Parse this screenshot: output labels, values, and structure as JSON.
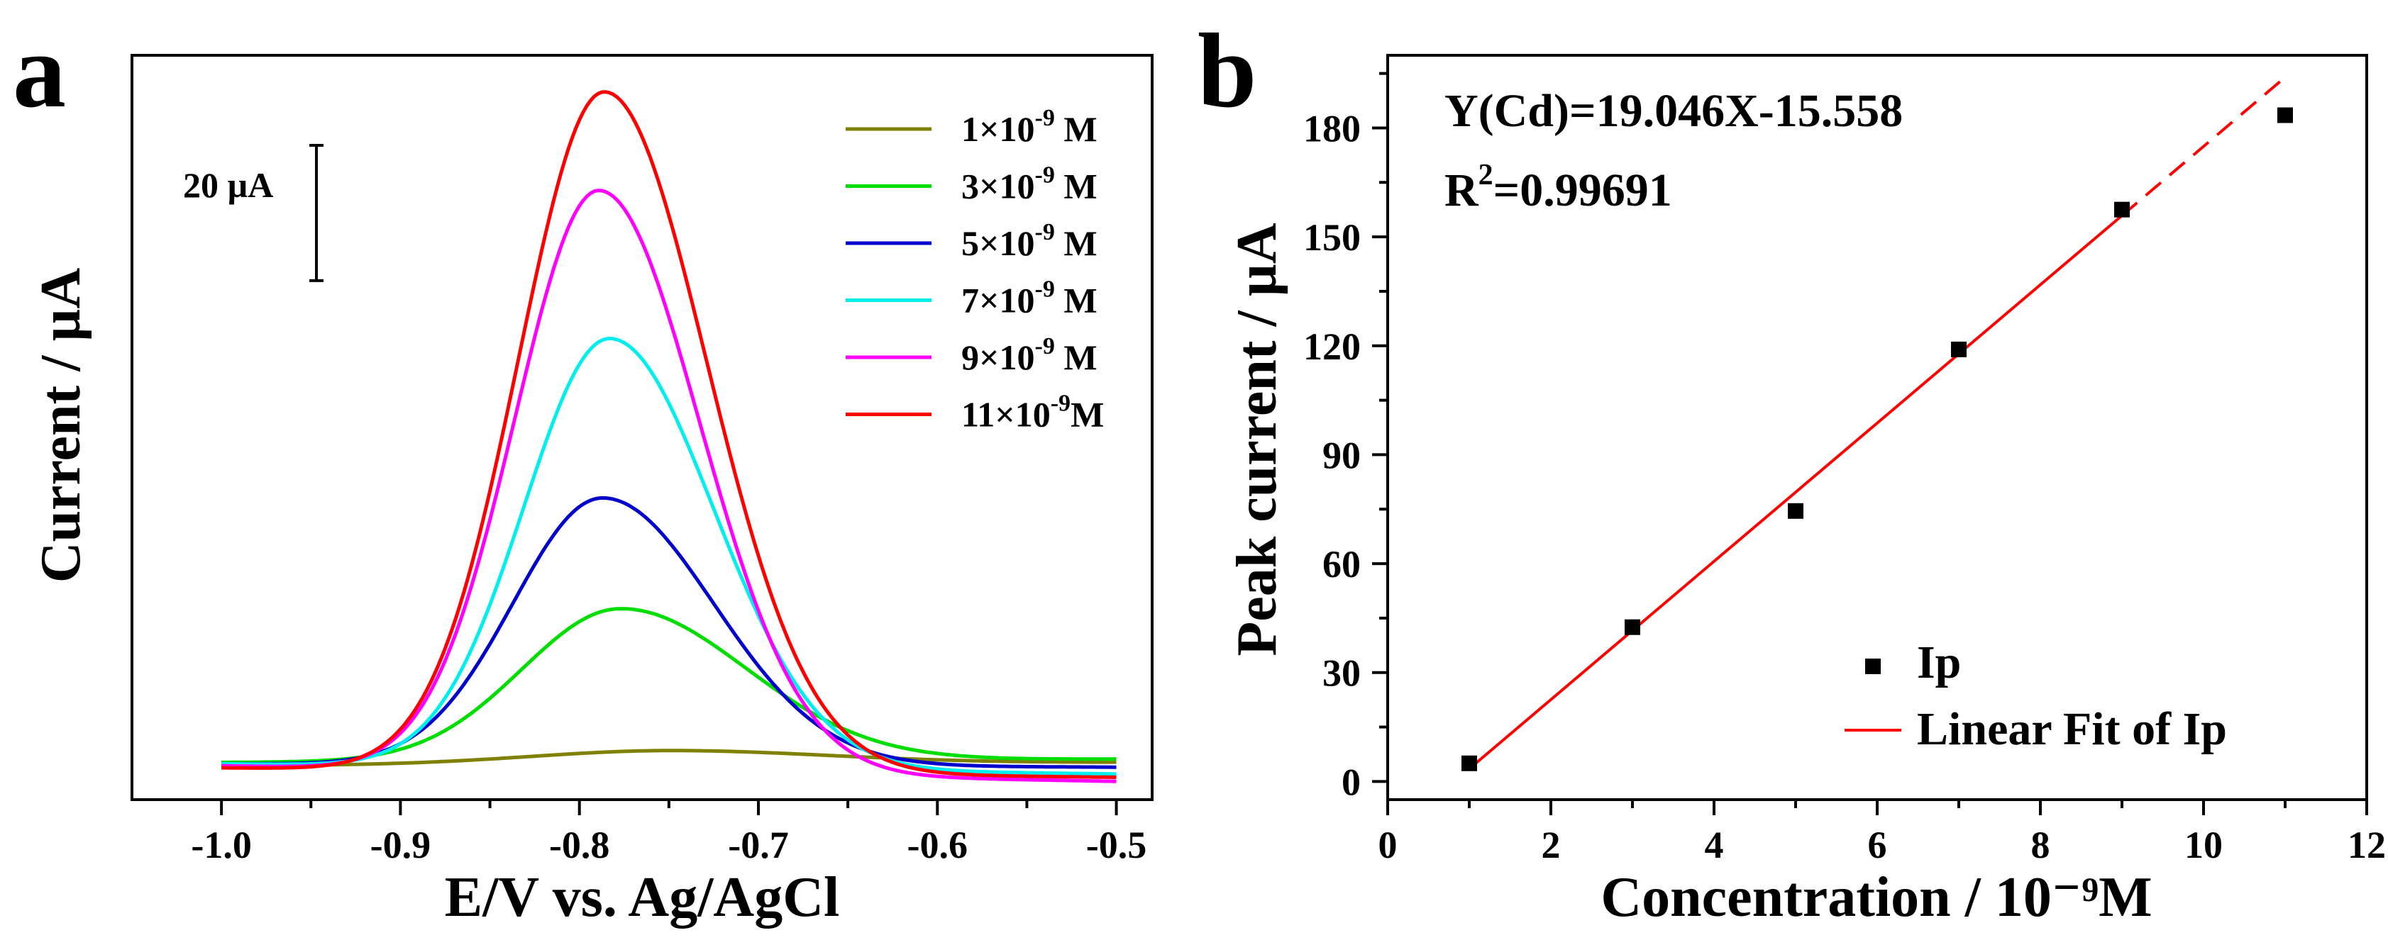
{
  "panel_a": {
    "label": "a",
    "scale_bar_label": "20 µA"
  },
  "panel_b": {
    "label": "b"
  },
  "chart_data": [
    {
      "type": "line",
      "title": "",
      "xlabel": "E/V vs. Ag/AgCl",
      "ylabel": "Current / µA",
      "xlim": [
        -1.05,
        -0.48
      ],
      "x_ticks": [
        -1.0,
        -0.9,
        -0.8,
        -0.7,
        -0.6,
        -0.5
      ],
      "x_tick_labels": [
        "-1.0",
        "-0.9",
        "-0.8",
        "-0.7",
        "-0.6",
        "-0.5"
      ],
      "ylim": [
        -5,
        105
      ],
      "y_ticks_shown": false,
      "scale_bar_uA": 20,
      "legend_position": "top-right",
      "series": [
        {
          "name": "1×10⁻⁹ M",
          "color": "#808000",
          "baseline": 0.0,
          "end_offset": 0.5,
          "peak_height": 2.0,
          "peak_potential": -0.752,
          "width_left": 0.075,
          "width_right": 0.09
        },
        {
          "name": "3×10⁻⁹ M",
          "color": "#00dd00",
          "baseline": 0.5,
          "end_offset": 0.5,
          "peak_height": 22.5,
          "peak_potential": -0.777,
          "width_left": 0.055,
          "width_right": 0.07
        },
        {
          "name": "5×10⁻⁹ M",
          "color": "#0000cc",
          "baseline": 0.3,
          "end_offset": -0.5,
          "peak_height": 39.5,
          "peak_potential": -0.787,
          "width_left": 0.05,
          "width_right": 0.062
        },
        {
          "name": "7×10⁻⁹ M",
          "color": "#00eeee",
          "baseline": 0.3,
          "end_offset": -1.5,
          "peak_height": 63.5,
          "peak_potential": -0.783,
          "width_left": 0.048,
          "width_right": 0.058
        },
        {
          "name": "9×10⁻⁹ M",
          "color": "#ff00ff",
          "baseline": 0.0,
          "end_offset": -2.3,
          "peak_height": 86.0,
          "peak_potential": -0.789,
          "width_left": 0.047,
          "width_right": 0.056
        },
        {
          "name": "11×10⁻⁹M",
          "color": "#ff0000",
          "baseline": -0.3,
          "end_offset": -1.4,
          "peak_height": 100.5,
          "peak_potential": -0.786,
          "width_left": 0.048,
          "width_right": 0.057
        }
      ]
    },
    {
      "type": "scatter",
      "title": "",
      "xlabel": "Concentration / 10⁻⁹M",
      "ylabel": "Peak current / µA",
      "xlim": [
        0,
        12
      ],
      "ylim": [
        -5,
        200
      ],
      "x_ticks": [
        0,
        2,
        4,
        6,
        8,
        10,
        12
      ],
      "y_ticks": [
        0,
        30,
        60,
        90,
        120,
        150,
        180
      ],
      "series": [
        {
          "name": "Ip",
          "marker": "square",
          "color": "#000000",
          "x": [
            1,
            3,
            5,
            7,
            9,
            11
          ],
          "y": [
            5.0,
            42.5,
            74.5,
            119.0,
            157.5,
            183.5
          ]
        }
      ],
      "fit": {
        "name": "Linear Fit of Ip",
        "color": "#ff0000",
        "slope": 19.046,
        "intercept": -15.558,
        "solid_x_range": [
          1,
          9
        ],
        "dashed_x_range": [
          9,
          11
        ]
      },
      "annotations": {
        "equation": "Y(Cd)=19.046X-15.558",
        "r_squared_prefix": "R",
        "r_squared_superscript": "2",
        "r_squared_value": "=0.99691"
      },
      "legend_position": "bottom-right"
    }
  ]
}
